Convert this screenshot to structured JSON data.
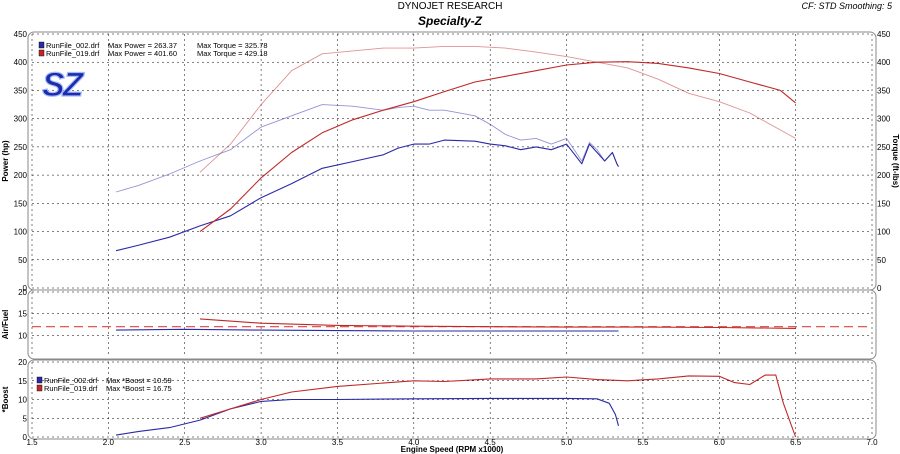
{
  "header": {
    "company": "DYNOJET RESEARCH",
    "title": "Specialty-Z",
    "cf_info": "CF: STD  Smoothing: 5"
  },
  "logo": {
    "text": "SZ"
  },
  "colors": {
    "run_002": "#2a2aa8",
    "run_019": "#c02828",
    "panel_bg": "#ffffff",
    "grid": "#000000",
    "afr_ref": "#e04040"
  },
  "chart_data": [
    {
      "type": "line",
      "panel": "power-torque",
      "xlabel": "",
      "ylabel": "Power (hp)",
      "y2label": "Torque (ft-lbs)",
      "xlim": [
        1.5,
        7.0
      ],
      "ylim": [
        0,
        450
      ],
      "y2lim": [
        0,
        450
      ],
      "yticks": [
        0,
        50,
        100,
        150,
        200,
        250,
        300,
        350,
        400,
        450
      ],
      "legend": [
        {
          "run": "RunFile_002.drf",
          "power_label": "Max Power = 263.37",
          "torque_label": "Max Torque = 325.78"
        },
        {
          "run": "RunFile_019.drf",
          "power_label": "Max Power = 401.60",
          "torque_label": "Max Torque = 429.18"
        }
      ],
      "series": [
        {
          "name": "RunFile_002.drf",
          "measure": "power",
          "axis": "left",
          "x": [
            2.05,
            2.2,
            2.4,
            2.6,
            2.8,
            3.0,
            3.2,
            3.4,
            3.6,
            3.8,
            3.9,
            4.0,
            4.1,
            4.2,
            4.4,
            4.5,
            4.6,
            4.7,
            4.8,
            4.9,
            5.0,
            5.1,
            5.15,
            5.2,
            5.25,
            5.3,
            5.33,
            5.34
          ],
          "y": [
            66,
            76,
            90,
            110,
            128,
            160,
            185,
            212,
            224,
            236,
            248,
            255,
            255,
            262,
            260,
            255,
            252,
            245,
            250,
            245,
            255,
            220,
            255,
            240,
            225,
            240,
            220,
            215
          ]
        },
        {
          "name": "RunFile_002.drf",
          "measure": "torque",
          "axis": "right",
          "x": [
            2.05,
            2.2,
            2.4,
            2.6,
            2.8,
            3.0,
            3.2,
            3.4,
            3.6,
            3.8,
            3.9,
            4.0,
            4.1,
            4.2,
            4.4,
            4.5,
            4.6,
            4.7,
            4.8,
            4.9,
            5.0,
            5.1,
            5.15,
            5.2,
            5.25,
            5.3,
            5.33,
            5.34
          ],
          "y": [
            170,
            182,
            202,
            225,
            245,
            285,
            305,
            325,
            322,
            315,
            320,
            322,
            315,
            315,
            305,
            290,
            272,
            262,
            265,
            255,
            265,
            225,
            258,
            245,
            225,
            240,
            220,
            215
          ]
        },
        {
          "name": "RunFile_019.drf",
          "measure": "power",
          "axis": "left",
          "x": [
            2.6,
            2.8,
            3.0,
            3.2,
            3.4,
            3.6,
            3.8,
            4.0,
            4.2,
            4.4,
            4.6,
            4.8,
            5.0,
            5.2,
            5.4,
            5.6,
            5.8,
            6.0,
            6.2,
            6.4,
            6.5
          ],
          "y": [
            100,
            140,
            195,
            240,
            275,
            298,
            315,
            330,
            348,
            365,
            375,
            385,
            395,
            400,
            401,
            398,
            390,
            380,
            365,
            350,
            328
          ]
        },
        {
          "name": "RunFile_019.drf",
          "measure": "torque",
          "axis": "right",
          "x": [
            2.6,
            2.8,
            3.0,
            3.2,
            3.4,
            3.6,
            3.8,
            4.0,
            4.2,
            4.4,
            4.6,
            4.8,
            5.0,
            5.2,
            5.4,
            5.6,
            5.8,
            6.0,
            6.2,
            6.4,
            6.5
          ],
          "y": [
            205,
            255,
            325,
            385,
            415,
            420,
            425,
            425,
            428,
            428,
            425,
            418,
            410,
            400,
            390,
            370,
            345,
            330,
            310,
            280,
            265
          ]
        }
      ]
    },
    {
      "type": "line",
      "panel": "air-fuel",
      "ylabel": "Air/Fuel",
      "xlim": [
        1.5,
        7.0
      ],
      "ylim": [
        5,
        20
      ],
      "yticks": [
        10,
        15,
        20
      ],
      "reference_line": 12,
      "series": [
        {
          "name": "RunFile_002.drf",
          "x": [
            2.05,
            2.5,
            3.0,
            3.5,
            4.0,
            4.5,
            5.0,
            5.34
          ],
          "y": [
            11.2,
            11.4,
            11.2,
            11.1,
            11.0,
            11.0,
            11.0,
            11.0
          ]
        },
        {
          "name": "RunFile_019.drf",
          "x": [
            2.6,
            3.0,
            3.5,
            4.0,
            4.5,
            5.0,
            5.5,
            6.0,
            6.5
          ],
          "y": [
            13.8,
            12.8,
            12.3,
            12.1,
            12.0,
            11.9,
            11.9,
            11.8,
            11.6
          ]
        }
      ]
    },
    {
      "type": "line",
      "panel": "boost",
      "ylabel": "*Boost",
      "xlabel": "Engine Speed (RPM x1000)",
      "xlim": [
        1.5,
        7.0
      ],
      "xticks": [
        1.5,
        2.0,
        2.5,
        3.0,
        3.5,
        4.0,
        4.5,
        5.0,
        5.5,
        6.0,
        6.5,
        7.0
      ],
      "ylim": [
        0,
        20
      ],
      "yticks": [
        0,
        5,
        10,
        15,
        20
      ],
      "legend": [
        {
          "run": "RunFile_002.drf",
          "label": "Max *Boost = 10.59"
        },
        {
          "run": "RunFile_019.drf",
          "label": "Max *Boost = 16.75"
        }
      ],
      "series": [
        {
          "name": "RunFile_002.drf",
          "x": [
            2.05,
            2.2,
            2.4,
            2.6,
            2.8,
            3.0,
            3.2,
            3.5,
            4.0,
            4.5,
            5.0,
            5.2,
            5.28,
            5.32,
            5.34
          ],
          "y": [
            0.5,
            1.5,
            2.5,
            4.5,
            7.5,
            9.5,
            10.0,
            10.0,
            10.2,
            10.3,
            10.3,
            10.2,
            9.0,
            6.0,
            3.0
          ]
        },
        {
          "name": "RunFile_019.drf",
          "x": [
            2.6,
            2.8,
            3.0,
            3.2,
            3.5,
            4.0,
            4.2,
            4.5,
            4.8,
            5.0,
            5.2,
            5.4,
            5.6,
            5.8,
            6.0,
            6.1,
            6.2,
            6.3,
            6.37,
            6.42,
            6.5
          ],
          "y": [
            5.0,
            7.5,
            10.0,
            12.0,
            13.5,
            15.0,
            14.8,
            15.5,
            15.5,
            16.0,
            15.3,
            15.0,
            15.5,
            16.3,
            16.2,
            14.5,
            14.0,
            16.5,
            16.5,
            9.0,
            0.0
          ]
        }
      ]
    }
  ]
}
